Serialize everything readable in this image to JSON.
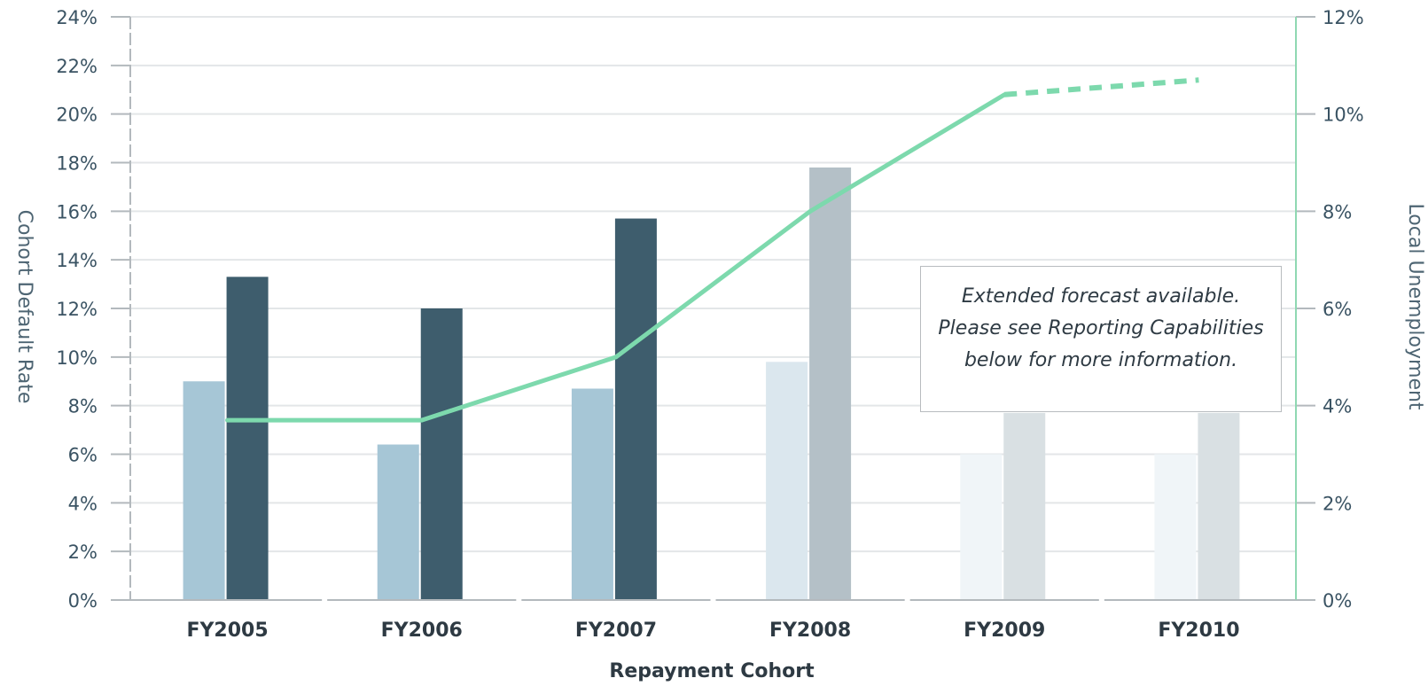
{
  "chart_data": {
    "type": "bar",
    "title": "",
    "xlabel": "Repayment Cohort",
    "ylabel": "Cohort Default Rate",
    "y2label": "Local Unemployment",
    "categories": [
      "FY2005",
      "FY2006",
      "FY2007",
      "FY2008",
      "FY2009",
      "FY2010"
    ],
    "ylim": [
      0,
      24
    ],
    "y2lim": [
      0,
      12
    ],
    "yticks": [
      "0%",
      "2%",
      "4%",
      "6%",
      "8%",
      "10%",
      "12%",
      "14%",
      "16%",
      "18%",
      "20%",
      "22%",
      "24%"
    ],
    "y2ticks": [
      "0%",
      "2%",
      "4%",
      "6%",
      "8%",
      "10%",
      "12%"
    ],
    "grid": true,
    "series": [
      {
        "kind": "bar",
        "axis": "left",
        "values": [
          9.0,
          6.4,
          8.7,
          9.8,
          6.0,
          6.0
        ],
        "colors": [
          "#a6c6d6",
          "#a6c6d6",
          "#a6c6d6",
          "#dbe7ee",
          "#f0f5f8",
          "#f0f5f8"
        ]
      },
      {
        "kind": "bar",
        "axis": "left",
        "values": [
          13.3,
          12.0,
          15.7,
          17.8,
          7.7,
          7.7
        ],
        "colors": [
          "#3e5d6d",
          "#3e5d6d",
          "#3e5d6d",
          "#b4c0c7",
          "#d9e0e3",
          "#d9e0e3"
        ]
      },
      {
        "kind": "line",
        "axis": "right",
        "color": "#7dd9ad",
        "x": [
          "FY2005",
          "FY2006",
          "FY2007",
          "FY2008",
          "FY2009",
          "FY2010"
        ],
        "values": [
          3.7,
          3.7,
          5.0,
          8.0,
          10.4,
          10.7
        ],
        "forecast_from": "FY2009"
      }
    ],
    "annotation": "Extended forecast available. Please see Reporting Capabilities below for more information."
  },
  "colors": {
    "grid": "#e3e6e8",
    "axis": "#b3b9bd",
    "right_axis": "#8fd8b2",
    "tick_text": "#3a5363"
  }
}
